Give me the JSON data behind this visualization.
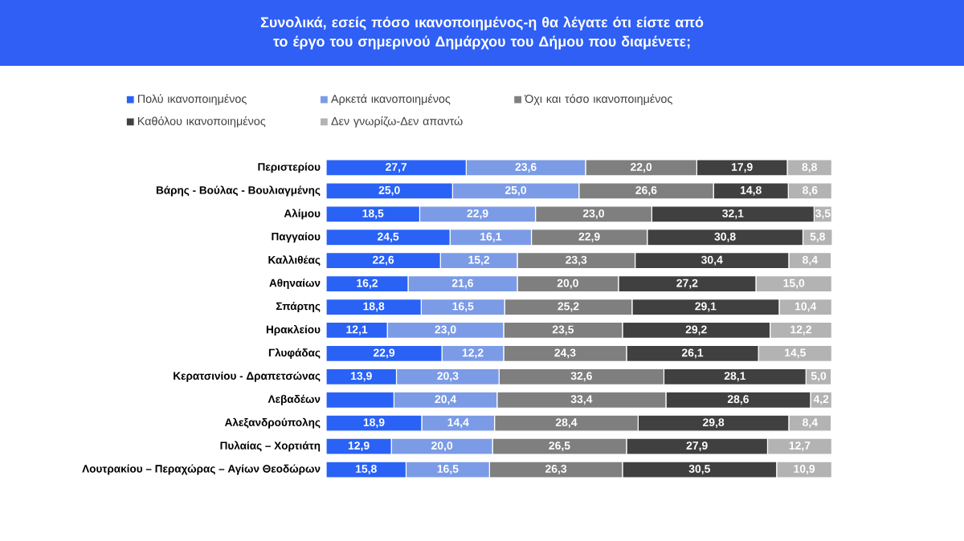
{
  "chart_data": {
    "type": "bar",
    "orientation": "horizontal",
    "stacked": true,
    "legend": "top",
    "tick_labels": "y",
    "title": "Συνολικά, εσείς πόσο ικανοποιημένος-η θα λέγατε ότι είστε από το έργο του σημερινού Δημάρχου του Δήμου που διαμένετε;",
    "categories": [
      "Περιστερίου",
      "Βάρης - Βούλας - Βουλιαγμένης",
      "Αλίμου",
      "Παγγαίου",
      "Καλλιθέας",
      "Αθηναίων",
      "Σπάρτης",
      "Ηρακλείου",
      "Γλυφάδας",
      "Κερατσινίου - Δραπετσώνας",
      "Λεβαδέων",
      "Αλεξανδρούπολης",
      "Πυλαίας – Χορτιάτη",
      "Λουτρακίου – Περαχώρας – Αγίων Θεοδώρων"
    ],
    "series": [
      {
        "name": "Πολύ ικανοποιημένος",
        "color": "#2962f5",
        "values": [
          27.7,
          25.0,
          18.5,
          24.5,
          22.6,
          16.2,
          18.8,
          12.1,
          22.9,
          13.9,
          13.4,
          18.9,
          12.9,
          15.8
        ],
        "value_labels": [
          "27,7",
          "25,0",
          "18,5",
          "24,5",
          "22,6",
          "16,2",
          "18,8",
          "12,1",
          "22,9",
          "13,9",
          null,
          "18,9",
          "12,9",
          "15,8"
        ]
      },
      {
        "name": "Αρκετά ικανοποιημένος",
        "color": "#7b9be6",
        "values": [
          23.6,
          25.0,
          22.9,
          16.1,
          15.2,
          21.6,
          16.5,
          23.0,
          12.2,
          20.3,
          20.4,
          14.4,
          20.0,
          16.5
        ],
        "value_labels": [
          "23,6",
          "25,0",
          "22,9",
          "16,1",
          "15,2",
          "21,6",
          "16,5",
          "23,0",
          "12,2",
          "20,3",
          "20,4",
          "14,4",
          "20,0",
          "16,5"
        ]
      },
      {
        "name": "Όχι και τόσο ικανοποιημένος",
        "color": "#7f7f7f",
        "values": [
          22.0,
          26.6,
          23.0,
          22.9,
          23.3,
          20.0,
          25.2,
          23.5,
          24.3,
          32.6,
          33.4,
          28.4,
          26.5,
          26.3
        ],
        "value_labels": [
          "22,0",
          "26,6",
          "23,0",
          "22,9",
          "23,3",
          "20,0",
          "25,2",
          "23,5",
          "24,3",
          "32,6",
          "33,4",
          "28,4",
          "26,5",
          "26,3"
        ]
      },
      {
        "name": "Καθόλου ικανοποιημένος",
        "color": "#404040",
        "values": [
          17.9,
          14.8,
          32.1,
          30.8,
          30.4,
          27.2,
          29.1,
          29.2,
          26.1,
          28.1,
          28.6,
          29.8,
          27.9,
          30.5
        ],
        "value_labels": [
          "17,9",
          "14,8",
          "32,1",
          "30,8",
          "30,4",
          "27,2",
          "29,1",
          "29,2",
          "26,1",
          "28,1",
          "28,6",
          "29,8",
          "27,9",
          "30,5"
        ]
      },
      {
        "name": "Δεν γνωρίζω-Δεν απαντώ",
        "color": "#b3b3b3",
        "values": [
          8.8,
          8.6,
          3.5,
          5.8,
          8.4,
          15.0,
          10.4,
          12.2,
          14.5,
          5.0,
          4.2,
          8.4,
          12.7,
          10.9
        ],
        "value_labels": [
          "8,8",
          "8,6",
          "3,5",
          "5,8",
          "8,4",
          "15,0",
          "10,4",
          "12,2",
          "14,5",
          "5,0",
          "4,2",
          "8,4",
          "12,7",
          "10,9"
        ]
      }
    ]
  }
}
